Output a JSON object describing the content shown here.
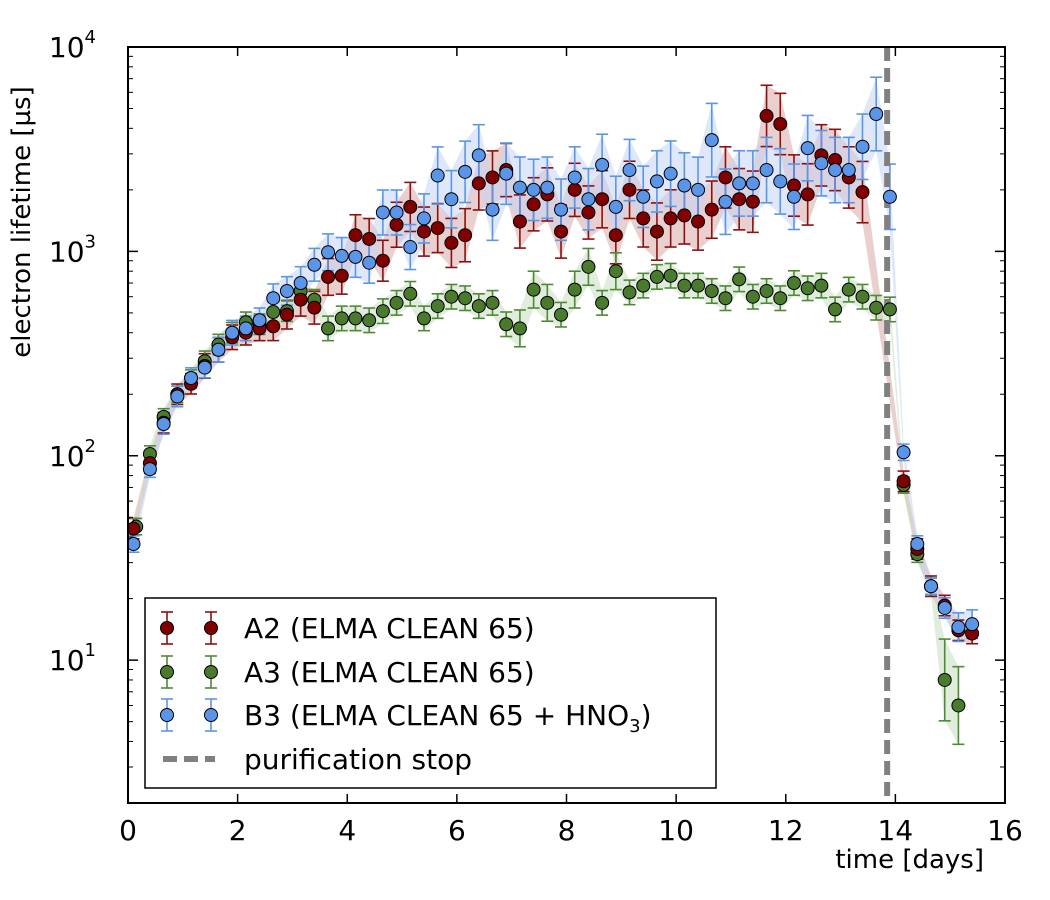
{
  "chart_data": {
    "type": "scatter",
    "yscale": "log",
    "xlabel": "time [days]",
    "ylabel": "electron lifetime [µs]",
    "xlim": [
      0,
      16
    ],
    "ylim": [
      2,
      10000
    ],
    "xticks": [
      0,
      2,
      4,
      6,
      8,
      10,
      12,
      14,
      16
    ],
    "yticks": [
      {
        "value": 10,
        "base": "10",
        "exp": "1"
      },
      {
        "value": 100,
        "base": "10",
        "exp": "2"
      },
      {
        "value": 1000,
        "base": "10",
        "exp": "3"
      },
      {
        "value": 10000,
        "base": "10",
        "exp": "4"
      }
    ],
    "vline": {
      "x": 13.85,
      "label": "purification stop",
      "color": "#808080"
    },
    "series": [
      {
        "name": "A2 (ELMA CLEAN 65)",
        "color": "#800000",
        "errcolor": "#8b1010",
        "band": "#d9a7a7",
        "x": [
          0.1,
          0.4,
          0.65,
          0.9,
          1.15,
          1.4,
          1.65,
          1.9,
          2.15,
          2.4,
          2.65,
          2.9,
          3.15,
          3.4,
          3.65,
          3.9,
          4.15,
          4.4,
          4.65,
          4.9,
          5.15,
          5.4,
          5.65,
          5.9,
          6.15,
          6.4,
          6.65,
          6.9,
          7.15,
          7.4,
          7.65,
          7.9,
          8.15,
          8.4,
          8.65,
          8.9,
          9.15,
          9.4,
          9.65,
          9.9,
          10.15,
          10.4,
          10.65,
          10.9,
          11.15,
          11.4,
          11.65,
          11.9,
          12.15,
          12.4,
          12.65,
          12.9,
          13.15,
          13.4,
          14.15,
          14.4,
          14.65,
          14.9,
          15.15,
          15.4
        ],
        "y": [
          44,
          92,
          145,
          200,
          225,
          275,
          330,
          380,
          400,
          420,
          430,
          490,
          580,
          530,
          750,
          760,
          1200,
          1150,
          900,
          1350,
          1650,
          1250,
          1300,
          1100,
          1200,
          2150,
          2300,
          2500,
          1400,
          1700,
          1900,
          1250,
          2000,
          1550,
          1800,
          1200,
          2000,
          1450,
          1250,
          1450,
          1500,
          1400,
          1600,
          2300,
          1800,
          1750,
          4600,
          4200,
          2100,
          1900,
          2950,
          2800,
          2300,
          1950,
          75,
          35,
          23,
          18.5,
          14,
          13.5
        ],
        "err": [
          0.05,
          0.05,
          0.05,
          0.05,
          0.05,
          0.06,
          0.06,
          0.06,
          0.06,
          0.06,
          0.07,
          0.07,
          0.08,
          0.08,
          0.09,
          0.09,
          0.1,
          0.1,
          0.1,
          0.11,
          0.12,
          0.12,
          0.12,
          0.12,
          0.13,
          0.13,
          0.13,
          0.13,
          0.13,
          0.13,
          0.13,
          0.13,
          0.13,
          0.13,
          0.14,
          0.14,
          0.14,
          0.14,
          0.14,
          0.14,
          0.14,
          0.14,
          0.14,
          0.15,
          0.15,
          0.15,
          0.15,
          0.15,
          0.15,
          0.15,
          0.15,
          0.15,
          0.15,
          0.15,
          0.05,
          0.05,
          0.05,
          0.05,
          0.05,
          0.05
        ]
      },
      {
        "name": "A3 (ELMA CLEAN 65)",
        "color": "#4a7a2e",
        "errcolor": "#4e8a35",
        "band": "#c9dfbf",
        "x": [
          0.15,
          0.4,
          0.65,
          0.9,
          1.15,
          1.4,
          1.65,
          1.9,
          2.15,
          2.4,
          2.65,
          2.9,
          3.15,
          3.4,
          3.65,
          3.9,
          4.15,
          4.4,
          4.65,
          4.9,
          5.15,
          5.4,
          5.65,
          5.9,
          6.15,
          6.4,
          6.65,
          6.9,
          7.15,
          7.4,
          7.65,
          7.9,
          8.15,
          8.4,
          8.65,
          8.9,
          9.15,
          9.4,
          9.65,
          9.9,
          10.15,
          10.4,
          10.65,
          10.9,
          11.15,
          11.4,
          11.65,
          11.9,
          12.15,
          12.4,
          12.65,
          12.9,
          13.15,
          13.4,
          13.65,
          13.9,
          14.15,
          14.4,
          14.65,
          14.9,
          15.15
        ],
        "y": [
          45,
          102,
          155,
          200,
          240,
          290,
          350,
          400,
          450,
          440,
          505,
          510,
          640,
          580,
          420,
          470,
          470,
          460,
          510,
          560,
          620,
          470,
          540,
          600,
          590,
          540,
          560,
          440,
          420,
          650,
          560,
          490,
          650,
          840,
          560,
          800,
          630,
          680,
          750,
          760,
          680,
          680,
          640,
          590,
          730,
          600,
          640,
          590,
          700,
          660,
          680,
          520,
          650,
          600,
          530,
          520,
          72,
          33,
          23,
          8.0,
          6.0
        ],
        "err": [
          0.04,
          0.04,
          0.04,
          0.04,
          0.04,
          0.05,
          0.05,
          0.05,
          0.05,
          0.05,
          0.05,
          0.05,
          0.05,
          0.05,
          0.06,
          0.06,
          0.06,
          0.06,
          0.06,
          0.06,
          0.06,
          0.06,
          0.06,
          0.06,
          0.06,
          0.06,
          0.06,
          0.06,
          0.09,
          0.09,
          0.09,
          0.06,
          0.09,
          0.09,
          0.06,
          0.09,
          0.06,
          0.06,
          0.06,
          0.06,
          0.06,
          0.06,
          0.06,
          0.06,
          0.06,
          0.06,
          0.06,
          0.06,
          0.06,
          0.06,
          0.06,
          0.06,
          0.06,
          0.06,
          0.06,
          0.06,
          0.04,
          0.04,
          0.04,
          0.2,
          0.19
        ]
      },
      {
        "name": "B3 (ELMA CLEAN 65 + HNO",
        "name_sub": "3",
        "name_end": ")",
        "color": "#5b95e8",
        "errcolor": "#5b95e8",
        "band": "#c5d6f6",
        "x": [
          0.1,
          0.4,
          0.65,
          0.9,
          1.15,
          1.4,
          1.65,
          1.9,
          2.15,
          2.4,
          2.65,
          2.9,
          3.15,
          3.4,
          3.65,
          3.9,
          4.15,
          4.4,
          4.65,
          4.9,
          5.15,
          5.4,
          5.65,
          5.9,
          6.15,
          6.4,
          6.65,
          6.9,
          7.15,
          7.4,
          7.65,
          7.9,
          8.15,
          8.4,
          8.65,
          8.9,
          9.15,
          9.4,
          9.65,
          9.9,
          10.15,
          10.4,
          10.65,
          10.9,
          11.15,
          11.4,
          11.65,
          11.9,
          12.15,
          12.4,
          12.65,
          12.9,
          13.15,
          13.4,
          13.65,
          13.9,
          14.15,
          14.4,
          14.65,
          14.9,
          15.15,
          15.4
        ],
        "y": [
          37,
          86,
          143,
          195,
          240,
          270,
          330,
          400,
          420,
          460,
          590,
          640,
          700,
          860,
          990,
          950,
          940,
          880,
          1550,
          1550,
          1050,
          1450,
          2350,
          1800,
          2450,
          2950,
          1600,
          2400,
          2050,
          2000,
          2050,
          1600,
          2300,
          1800,
          2650,
          1650,
          2500,
          1850,
          2200,
          2400,
          2100,
          2000,
          3500,
          1750,
          2150,
          2150,
          2500,
          2200,
          1850,
          3200,
          2700,
          2500,
          2500,
          3250,
          4700,
          1850,
          104,
          37,
          23,
          18,
          14.5,
          15
        ],
        "err": [
          0.04,
          0.04,
          0.05,
          0.05,
          0.05,
          0.05,
          0.06,
          0.06,
          0.06,
          0.06,
          0.07,
          0.07,
          0.08,
          0.08,
          0.09,
          0.09,
          0.1,
          0.1,
          0.11,
          0.11,
          0.11,
          0.12,
          0.14,
          0.14,
          0.15,
          0.15,
          0.15,
          0.15,
          0.15,
          0.15,
          0.15,
          0.15,
          0.15,
          0.15,
          0.15,
          0.15,
          0.15,
          0.15,
          0.15,
          0.16,
          0.16,
          0.16,
          0.18,
          0.16,
          0.16,
          0.16,
          0.16,
          0.16,
          0.16,
          0.16,
          0.16,
          0.16,
          0.16,
          0.16,
          0.18,
          0.16,
          0.04,
          0.04,
          0.04,
          0.05,
          0.07,
          0.07
        ]
      }
    ],
    "legend": {
      "position": "lower-left"
    }
  }
}
